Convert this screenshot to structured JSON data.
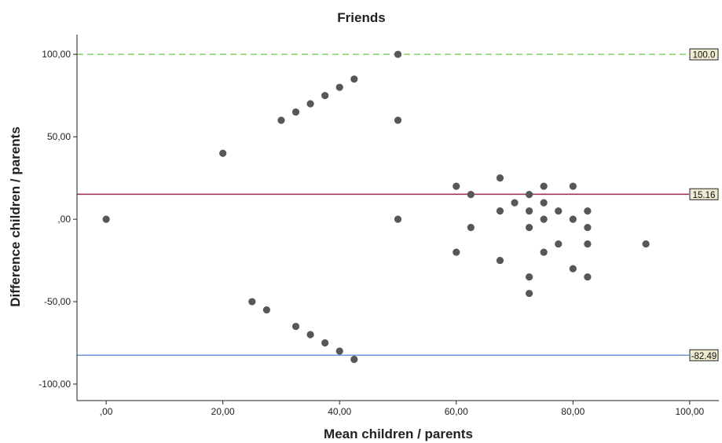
{
  "chart_data": {
    "type": "scatter",
    "title": "Friends",
    "xlabel": "Mean children / parents",
    "ylabel": "Difference children / parents",
    "xlim": [
      -5,
      105
    ],
    "ylim": [
      -110,
      112
    ],
    "x_ticks": [
      0,
      20,
      40,
      60,
      80,
      100
    ],
    "x_tick_labels": [
      ",00",
      "20,00",
      "40,00",
      "60,00",
      "80,00",
      "100,00"
    ],
    "y_ticks": [
      100,
      50,
      0,
      -50,
      -100
    ],
    "y_tick_labels": [
      "100,00",
      "50,00",
      ",00",
      "-50,00",
      "-100,00"
    ],
    "grid": false,
    "point_color": "#575757",
    "reference_lines": [
      {
        "value": 100.0,
        "label": "100.0",
        "color": "#8fd16f",
        "style": "dashed"
      },
      {
        "value": 15.16,
        "label": "15.16",
        "color": "#a3345f",
        "style": "solid"
      },
      {
        "value": -82.49,
        "label": "-82.49",
        "color": "#6f95dc",
        "style": "solid"
      }
    ],
    "points": [
      {
        "x": 0,
        "y": 0
      },
      {
        "x": 20,
        "y": 40
      },
      {
        "x": 30,
        "y": 60
      },
      {
        "x": 32.5,
        "y": 65
      },
      {
        "x": 35,
        "y": 70
      },
      {
        "x": 37.5,
        "y": 75
      },
      {
        "x": 40,
        "y": 80
      },
      {
        "x": 42.5,
        "y": 85
      },
      {
        "x": 50,
        "y": 100
      },
      {
        "x": 50,
        "y": 60
      },
      {
        "x": 50,
        "y": 0
      },
      {
        "x": 25,
        "y": -50
      },
      {
        "x": 27.5,
        "y": -55
      },
      {
        "x": 32.5,
        "y": -65
      },
      {
        "x": 35,
        "y": -70
      },
      {
        "x": 37.5,
        "y": -75
      },
      {
        "x": 40,
        "y": -80
      },
      {
        "x": 42.5,
        "y": -85
      },
      {
        "x": 60,
        "y": 20
      },
      {
        "x": 60,
        "y": -20
      },
      {
        "x": 62.5,
        "y": 15
      },
      {
        "x": 62.5,
        "y": -5
      },
      {
        "x": 67.5,
        "y": 25
      },
      {
        "x": 67.5,
        "y": 5
      },
      {
        "x": 67.5,
        "y": -25
      },
      {
        "x": 70,
        "y": 10
      },
      {
        "x": 72.5,
        "y": 15
      },
      {
        "x": 72.5,
        "y": 5
      },
      {
        "x": 72.5,
        "y": -5
      },
      {
        "x": 72.5,
        "y": -35
      },
      {
        "x": 72.5,
        "y": -45
      },
      {
        "x": 75,
        "y": 20
      },
      {
        "x": 75,
        "y": 10
      },
      {
        "x": 75,
        "y": 0
      },
      {
        "x": 75,
        "y": -20
      },
      {
        "x": 77.5,
        "y": 5
      },
      {
        "x": 77.5,
        "y": -15
      },
      {
        "x": 80,
        "y": 20
      },
      {
        "x": 80,
        "y": 0
      },
      {
        "x": 80,
        "y": -30
      },
      {
        "x": 82.5,
        "y": 5
      },
      {
        "x": 82.5,
        "y": -5
      },
      {
        "x": 82.5,
        "y": -15
      },
      {
        "x": 82.5,
        "y": -35
      },
      {
        "x": 92.5,
        "y": -15
      }
    ]
  }
}
